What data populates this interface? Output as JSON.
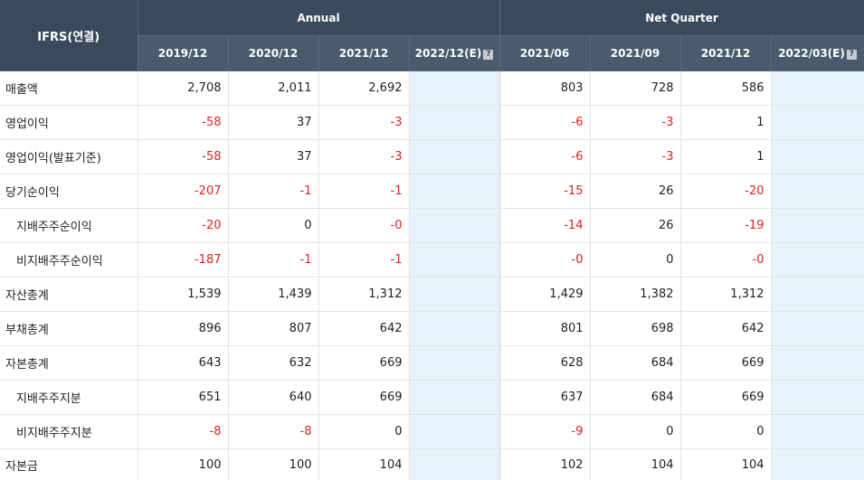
{
  "table": {
    "corner_label": "IFRS(연결)",
    "groups": {
      "annual": "Annual",
      "quarter": "Net Quarter"
    },
    "periods": [
      "2019/12",
      "2020/12",
      "2021/12",
      "2022/12(E)",
      "2021/06",
      "2021/09",
      "2021/12",
      "2022/03(E)"
    ],
    "estimate_icon": "?",
    "rows": [
      {
        "label": "매출액",
        "sub": false,
        "values": [
          "2,708",
          "2,011",
          "2,692",
          "",
          "803",
          "728",
          "586",
          ""
        ]
      },
      {
        "label": "영업이익",
        "sub": false,
        "values": [
          "-58",
          "37",
          "-3",
          "",
          "-6",
          "-3",
          "1",
          ""
        ]
      },
      {
        "label": "영업이익(발표기준)",
        "sub": false,
        "values": [
          "-58",
          "37",
          "-3",
          "",
          "-6",
          "-3",
          "1",
          ""
        ]
      },
      {
        "label": "당기순이익",
        "sub": false,
        "values": [
          "-207",
          "-1",
          "-1",
          "",
          "-15",
          "26",
          "-20",
          ""
        ]
      },
      {
        "label": "지배주주순이익",
        "sub": true,
        "values": [
          "-20",
          "0",
          "-0",
          "",
          "-14",
          "26",
          "-19",
          ""
        ]
      },
      {
        "label": "비지배주주순이익",
        "sub": true,
        "values": [
          "-187",
          "-1",
          "-1",
          "",
          "-0",
          "0",
          "-0",
          ""
        ]
      },
      {
        "label": "자산총계",
        "sub": false,
        "values": [
          "1,539",
          "1,439",
          "1,312",
          "",
          "1,429",
          "1,382",
          "1,312",
          ""
        ]
      },
      {
        "label": "부채총계",
        "sub": false,
        "values": [
          "896",
          "807",
          "642",
          "",
          "801",
          "698",
          "642",
          ""
        ]
      },
      {
        "label": "자본총계",
        "sub": false,
        "values": [
          "643",
          "632",
          "669",
          "",
          "628",
          "684",
          "669",
          ""
        ]
      },
      {
        "label": "지배주주지분",
        "sub": true,
        "values": [
          "651",
          "640",
          "669",
          "",
          "637",
          "684",
          "669",
          ""
        ]
      },
      {
        "label": "비지배주주지분",
        "sub": true,
        "values": [
          "-8",
          "-8",
          "0",
          "",
          "-9",
          "0",
          "0",
          ""
        ]
      },
      {
        "label": "자본금",
        "sub": false,
        "values": [
          "100",
          "100",
          "104",
          "",
          "102",
          "104",
          "104",
          ""
        ]
      }
    ]
  },
  "colors": {
    "header_bg": "#3a4a5c",
    "estimate_bg": "#e6f3fa",
    "negative_text": "#e02020"
  }
}
